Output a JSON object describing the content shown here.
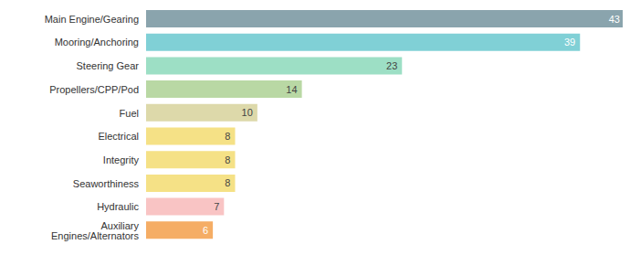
{
  "chart_data": {
    "type": "bar",
    "orientation": "horizontal",
    "categories": [
      "Main Engine/Gearing",
      "Mooring/Anchoring",
      "Steering Gear",
      "Propellers/CPP/Pod",
      "Fuel",
      "Electrical",
      "Integrity",
      "Seaworthiness",
      "Hydraulic",
      "Auxiliary Engines/Alternators"
    ],
    "values": [
      43,
      39,
      23,
      14,
      10,
      8,
      8,
      8,
      7,
      6
    ],
    "colors": [
      "#8aa4ad",
      "#80d0d6",
      "#9ddfc5",
      "#b9d8a4",
      "#ddd9aa",
      "#f5e186",
      "#f5e186",
      "#f5e186",
      "#f9c4c4",
      "#f5ad65"
    ],
    "xlim": [
      0,
      43
    ],
    "data_labels": true,
    "tick_labels": "y",
    "grid": false
  }
}
